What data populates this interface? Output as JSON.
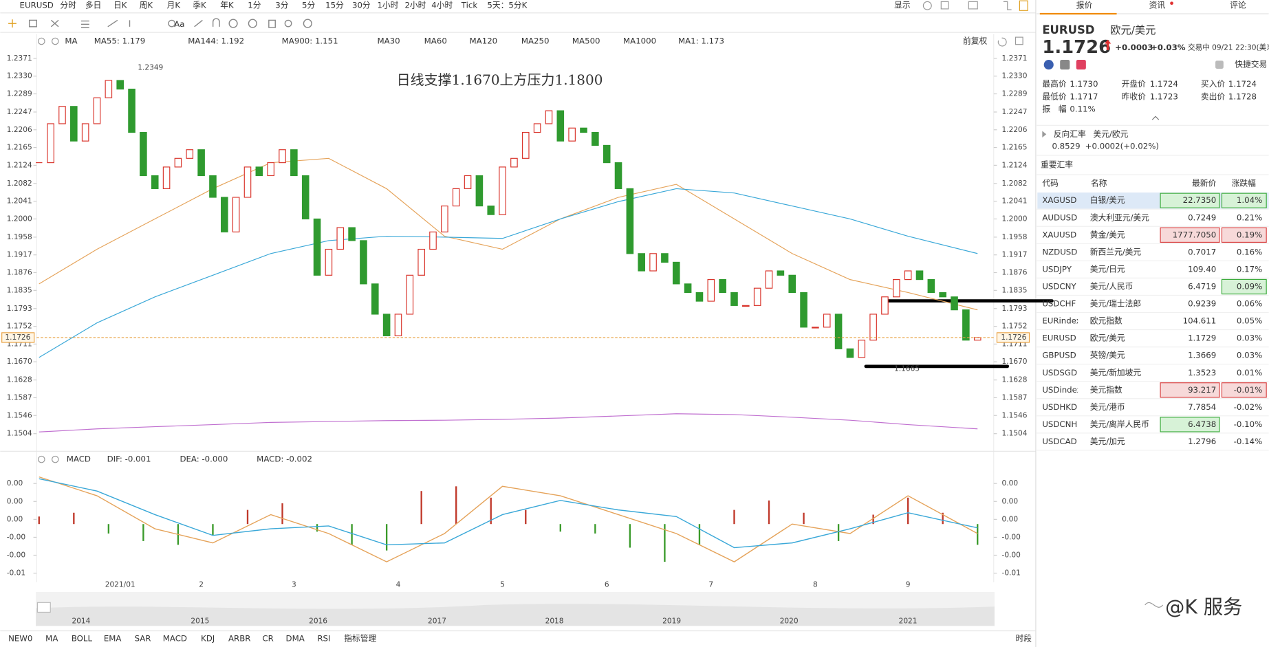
{
  "toolbar": {
    "items": [
      "EURUSD",
      "分时",
      "多日",
      "日K",
      "周K",
      "月K",
      "季K",
      "年K",
      "1分",
      "3分",
      "5分",
      "15分",
      "30分",
      "1小时",
      "2小时",
      "4小时",
      "Tick",
      "5天：5分K"
    ],
    "active": 3,
    "display": "显示",
    "tool_text": "Aa"
  },
  "chart_data": [
    {
      "type": "candlestick",
      "annotation": "日线支撑1.1670上方压力1.1800",
      "legend_title": "MA",
      "adjust": "前复权",
      "categories": [
        null,
        null,
        null,
        null,
        null,
        null,
        null,
        "2021/01",
        null,
        null,
        null,
        null,
        null,
        null,
        "2",
        null,
        null,
        null,
        null,
        null,
        null,
        null,
        "3",
        null,
        null,
        null,
        null,
        null,
        null,
        null,
        null,
        "4",
        null,
        null,
        null,
        null,
        null,
        null,
        null,
        null,
        "5",
        null,
        null,
        null,
        null,
        null,
        null,
        null,
        null,
        "6",
        null,
        null,
        null,
        null,
        null,
        null,
        null,
        null,
        "7",
        null,
        null,
        null,
        null,
        null,
        null,
        null,
        null,
        "8",
        null,
        null,
        null,
        null,
        null,
        null,
        null,
        "9",
        null,
        null,
        null,
        null,
        null,
        null
      ],
      "values": [
        1.213,
        1.222,
        1.226,
        1.218,
        1.222,
        1.228,
        1.232,
        1.23,
        1.22,
        1.21,
        1.207,
        1.212,
        1.214,
        1.216,
        1.21,
        1.205,
        1.197,
        1.205,
        1.212,
        1.21,
        1.213,
        1.216,
        1.21,
        1.2,
        1.187,
        1.193,
        1.198,
        1.195,
        1.185,
        1.178,
        1.173,
        1.178,
        1.187,
        1.193,
        1.197,
        1.203,
        1.207,
        1.21,
        1.203,
        1.201,
        1.212,
        1.214,
        1.22,
        1.222,
        1.225,
        1.218,
        1.221,
        1.22,
        1.217,
        1.213,
        1.207,
        1.192,
        1.188,
        1.192,
        1.19,
        1.185,
        1.183,
        1.181,
        1.186,
        1.183,
        1.18,
        1.18,
        1.184,
        1.188,
        1.187,
        1.183,
        1.175,
        1.175,
        1.178,
        1.17,
        1.168,
        1.172,
        1.178,
        1.182,
        1.186,
        1.188,
        1.186,
        1.183,
        1.182,
        1.179,
        1.172,
        1.1726
      ],
      "up_color": "#d9342b",
      "down_color": "#2f9a2f",
      "last_color": "#e8a040",
      "high": 1.2349,
      "low": 1.1665,
      "series": [
        {
          "name": "MA55: 1.179",
          "color": "#e5a35a",
          "x": [
            0,
            5,
            10,
            15,
            20,
            25,
            30,
            35,
            40,
            45,
            50,
            55,
            60,
            65,
            70,
            75,
            81
          ],
          "values": [
            1.185,
            1.193,
            1.2,
            1.207,
            1.213,
            1.214,
            1.207,
            1.196,
            1.193,
            1.2,
            1.205,
            1.208,
            1.2,
            1.192,
            1.186,
            1.183,
            1.179
          ]
        },
        {
          "name": "MA144: 1.192",
          "color": "#3aa8d8",
          "x": [
            0,
            5,
            10,
            15,
            20,
            25,
            30,
            35,
            40,
            45,
            50,
            55,
            60,
            65,
            70,
            75,
            81
          ],
          "values": [
            1.168,
            1.176,
            1.182,
            1.187,
            1.192,
            1.195,
            1.196,
            1.1958,
            1.1955,
            1.2,
            1.204,
            1.207,
            1.206,
            1.203,
            1.2,
            1.196,
            1.192
          ]
        },
        {
          "name": "MA900: 1.151",
          "color": "#c070d0",
          "x": [
            0,
            5,
            10,
            15,
            20,
            25,
            30,
            35,
            40,
            45,
            50,
            55,
            60,
            65,
            70,
            75,
            81
          ],
          "values": [
            1.1508,
            1.1515,
            1.152,
            1.1525,
            1.153,
            1.1532,
            1.1534,
            1.1535,
            1.1537,
            1.154,
            1.1545,
            1.155,
            1.1548,
            1.1542,
            1.1535,
            1.1525,
            1.1515
          ]
        }
      ],
      "inactive": [
        {
          "name": "MA30",
          "color": "#c8d8f0"
        },
        {
          "name": "MA60",
          "color": "#c8d8f0"
        },
        {
          "name": "MA120",
          "color": "#f0d0c8"
        },
        {
          "name": "MA250",
          "color": "#c8e8f0"
        },
        {
          "name": "MA500",
          "color": "#f0e0b0"
        },
        {
          "name": "MA1000",
          "color": "#e8c8f0"
        },
        {
          "name": "MA1: 1.173",
          "color": "#888888"
        }
      ],
      "ylim": [
        1.1467,
        1.239
      ],
      "yticks": [
        1.2371,
        {
          "value": 1.233,
          "label": "1.2330"
        },
        1.2289,
        1.2247,
        1.2206,
        1.2165,
        1.2124,
        1.2082,
        1.2041,
        {
          "value": 1.2,
          "label": "1.2000"
        },
        1.1958,
        1.1917,
        1.1876,
        1.1835,
        1.1793,
        1.1752,
        1.1711,
        {
          "value": 1.167,
          "label": "1.1670"
        },
        1.1628,
        1.1587,
        1.1546,
        1.1504
      ],
      "years": [
        "2014",
        "2015",
        "2016",
        "2017",
        "2018",
        "2019",
        "2020",
        "2021"
      ]
    },
    {
      "type": "macd",
      "legend_title": "MACD",
      "series": [
        {
          "name": "DIF: -0.001",
          "color": "#e5a35a",
          "x": [
            0,
            5,
            10,
            15,
            20,
            25,
            30,
            35,
            40,
            45,
            50,
            55,
            60,
            65,
            70,
            75,
            81
          ],
          "values": [
            0.005,
            0.003,
            -0.0005,
            -0.002,
            0.001,
            -0.001,
            -0.004,
            -0.001,
            0.004,
            0.003,
            0.001,
            -0.001,
            -0.004,
            0.0,
            -0.001,
            0.003,
            -0.001
          ]
        },
        {
          "name": "DEA: -0.000",
          "color": "#3aa8d8",
          "x": [
            0,
            5,
            10,
            15,
            20,
            25,
            30,
            35,
            40,
            45,
            50,
            55,
            60,
            65,
            70,
            75,
            81
          ],
          "values": [
            0.0048,
            0.0035,
            0.001,
            -0.0012,
            -0.0005,
            -0.0002,
            -0.0022,
            -0.002,
            0.001,
            0.0025,
            0.0015,
            0.0008,
            -0.0025,
            -0.002,
            -0.0005,
            0.0012,
            -0.0004
          ]
        }
      ],
      "histogram": {
        "name": "MACD: -0.002",
        "color": "#d060c0",
        "up_color": "#c0392b",
        "down_color": "#3a9a2a",
        "x": [
          0,
          3,
          6,
          9,
          12,
          15,
          18,
          21,
          24,
          27,
          30,
          33,
          36,
          39,
          42,
          45,
          48,
          51,
          54,
          57,
          60,
          63,
          66,
          69,
          72,
          75,
          78,
          81
        ],
        "values": [
          0.0008,
          0.0012,
          -0.001,
          -0.0018,
          -0.0022,
          -0.0012,
          0.0015,
          0.0022,
          -0.0008,
          -0.0022,
          -0.0028,
          0.0035,
          0.004,
          0.0028,
          0.0015,
          -0.0008,
          -0.001,
          -0.0025,
          -0.004,
          -0.0022,
          0.0015,
          0.0025,
          0.0012,
          -0.0018,
          0.001,
          0.0028,
          0.0012,
          -0.0022
        ]
      },
      "ylim": [
        -0.006,
        0.006
      ],
      "yticks": [
        {
          "value": 0.0043,
          "label": "0.00"
        },
        {
          "value": 0.0024,
          "label": "0.00"
        },
        {
          "value": 0.0005,
          "label": "0.00"
        },
        {
          "value": -0.0014,
          "label": "-0.00"
        },
        {
          "value": -0.0033,
          "label": "-0.00"
        },
        {
          "value": -0.0052,
          "label": "-0.01"
        }
      ]
    }
  ],
  "indicator_bar": {
    "items": [
      "NEW0",
      "MA",
      "BOLL",
      "EMA",
      "SAR",
      "MACD",
      "KDJ",
      "ARBR",
      "CR",
      "DMA",
      "RSI",
      "指标管理"
    ],
    "active": [
      1,
      5,
      11
    ],
    "session": "时段"
  },
  "quote_panel": {
    "tabs": [
      "报价",
      "资讯",
      "评论"
    ],
    "symbol": "EURUSD",
    "name": "欧元/美元",
    "price": "1.1726",
    "change": "+0.0003",
    "change_pct": "+0.03%",
    "status": "交易中 09/21 22:30(美东",
    "quick_trade": "快捷交易",
    "stats": [
      [
        "最高价",
        "1.1730"
      ],
      [
        "开盘价",
        "1.1724"
      ],
      [
        "买入价",
        "1.1724"
      ],
      [
        "最低价",
        "1.1717"
      ],
      [
        "昨收价",
        "1.1723"
      ],
      [
        "卖出价",
        "1.1728"
      ],
      [
        "振　幅",
        "0.11%"
      ]
    ],
    "reverse": {
      "label": "反向汇率",
      "pair": "美元/欧元",
      "price": "0.8529",
      "change": "+0.0002(+0.02%)"
    },
    "table": {
      "title": "重要汇率",
      "columns": [
        "代码",
        "名称",
        "最新价",
        "涨跌幅"
      ],
      "selected": 0,
      "rows": [
        {
          "code": "XAGUSD",
          "name": "白银/美元",
          "price": "22.7350",
          "change": "1.04%",
          "price_box": "up",
          "change_box": "up"
        },
        {
          "code": "AUDUSD",
          "name": "澳大利亚元/美元",
          "price": "0.7249",
          "change": "0.21%"
        },
        {
          "code": "XAUUSD",
          "name": "黄金/美元",
          "price": "1777.7050",
          "change": "0.19%",
          "price_box": "down",
          "change_box": "down"
        },
        {
          "code": "NZDUSD",
          "name": "新西兰元/美元",
          "price": "0.7017",
          "change": "0.16%"
        },
        {
          "code": "USDJPY",
          "name": "美元/日元",
          "price": "109.40",
          "change": "0.17%"
        },
        {
          "code": "USDCNY",
          "name": "美元/人民币",
          "price": "6.4719",
          "change": "0.09%",
          "change_box": "up"
        },
        {
          "code": "USDCHF",
          "name": "美元/瑞士法郎",
          "price": "0.9239",
          "change": "0.06%"
        },
        {
          "code": "EURindex",
          "name": "欧元指数",
          "price": "104.611",
          "change": "0.05%"
        },
        {
          "code": "EURUSD",
          "name": "欧元/美元",
          "price": "1.1729",
          "change": "0.03%"
        },
        {
          "code": "GBPUSD",
          "name": "英镑/美元",
          "price": "1.3669",
          "change": "0.03%"
        },
        {
          "code": "USDSGD",
          "name": "美元/新加坡元",
          "price": "1.3523",
          "change": "0.01%"
        },
        {
          "code": "USDindex",
          "name": "美元指数",
          "price": "93.217",
          "change": "-0.01%",
          "price_box": "down",
          "change_box": "down"
        },
        {
          "code": "USDHKD",
          "name": "美元/港币",
          "price": "7.7854",
          "change": "-0.02%"
        },
        {
          "code": "USDCNH",
          "name": "美元/离岸人民币",
          "price": "6.4738",
          "change": "-0.10%",
          "price_box": "up"
        },
        {
          "code": "USDCAD",
          "name": "美元/加元",
          "price": "1.2796",
          "change": "-0.14%"
        }
      ]
    }
  },
  "watermark": "@K 服务"
}
